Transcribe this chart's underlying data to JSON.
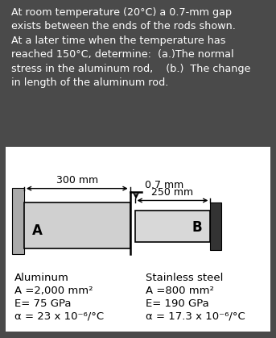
{
  "title_text": "At room temperature (20°C) a 0.7-mm gap\nexists between the ends of the rods shown.\nAt a later time when the temperature has\nreached 150°C, determine:  (a.)The normal\nstress in the aluminum rod,    (b.)  The change\nin length of the aluminum rod.",
  "title_bg": "#4a4a4a",
  "title_text_color": "#ffffff",
  "diagram_bg": "#ffffff",
  "fig_bg": "#4a4a4a",
  "gap_label": "0.7 mm",
  "al_length_label": "300 mm",
  "ss_length_label": "250 mm",
  "al_rod_color": "#d0d0d0",
  "ss_rod_color": "#d8d8d8",
  "wall_left_color": "#aaaaaa",
  "wall_right_color": "#333333",
  "al_label": "A",
  "ss_label": "B",
  "al_title": "Aluminum",
  "al_area": "A =2,000 mm²",
  "al_E": "E= 75 GPa",
  "al_alpha": "α = 23 x 10⁻⁶/°C",
  "ss_title": "Stainless steel",
  "ss_area": "A =800 mm²",
  "ss_E": "E= 190 GPa",
  "ss_alpha": "α = 17.3 x 10⁻⁶/°C",
  "props_text_color": "#000000",
  "props_fontsize": 9.5
}
